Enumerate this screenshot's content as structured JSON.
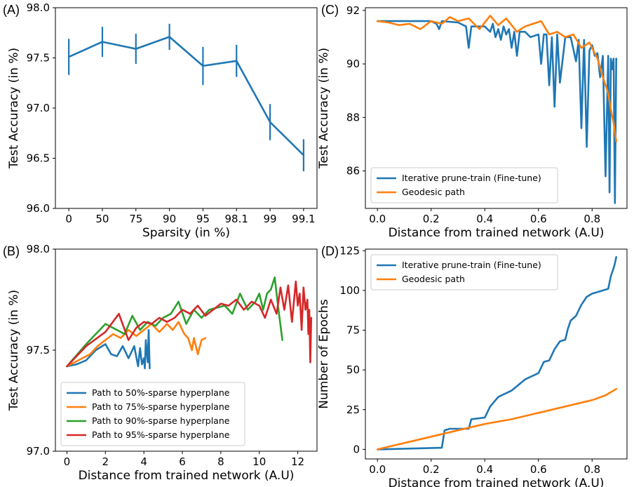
{
  "colors": {
    "blue": "#1f77b4",
    "orange": "#ff7f0e",
    "green": "#2ca02c",
    "red": "#d62728"
  },
  "chart_data": [
    {
      "panel": "(A)",
      "type": "line",
      "categories": [
        "0",
        "50",
        "75",
        "90",
        "95",
        "98.1",
        "99",
        "99.1"
      ],
      "series": [
        {
          "name": "test accuracy",
          "color": "blue",
          "values": [
            97.51,
            97.66,
            97.59,
            97.71,
            97.42,
            97.47,
            96.86,
            96.53
          ],
          "errors": [
            0.18,
            0.15,
            0.15,
            0.13,
            0.19,
            0.16,
            0.18,
            0.16
          ]
        }
      ],
      "xlabel": "Sparsity (in %)",
      "ylabel": "Test Accuracy (in %)",
      "ylim": [
        96.0,
        98.0
      ],
      "yticks": [
        "96.0",
        "96.5",
        "97.0",
        "97.5",
        "98.0"
      ]
    },
    {
      "panel": "(B)",
      "type": "line",
      "xlabel": "Distance from trained network (A.U)",
      "ylabel": "Test Accuracy (in %)",
      "xlim": [
        -0.6,
        13.0
      ],
      "ylim": [
        97.0,
        98.0
      ],
      "xticks": [
        "0",
        "2",
        "4",
        "6",
        "8",
        "10",
        "12"
      ],
      "yticks": [
        "97.0",
        "97.5",
        "98.0"
      ],
      "legend_loc": "lower-left",
      "series": [
        {
          "name": "Path to 50%-sparse hyperplane",
          "color": "blue",
          "x": [
            0,
            0.5,
            1,
            1.5,
            2,
            2.3,
            2.6,
            2.9,
            3.2,
            3.4,
            3.5,
            3.7,
            3.8,
            3.9,
            4.0,
            4.05,
            4.1,
            4.2,
            4.25,
            4.3
          ],
          "y": [
            97.42,
            97.43,
            97.45,
            97.5,
            97.53,
            97.48,
            97.47,
            97.52,
            97.46,
            97.5,
            97.52,
            97.42,
            97.51,
            97.43,
            97.46,
            97.41,
            97.55,
            97.44,
            97.6,
            97.41
          ]
        },
        {
          "name": "Path to 75%-sparse hyperplane",
          "color": "orange",
          "x": [
            0,
            0.6,
            1.2,
            1.6,
            2.0,
            2.4,
            2.8,
            3.2,
            3.6,
            4.0,
            4.4,
            4.8,
            5.2,
            5.5,
            5.8,
            6.1,
            6.3,
            6.5,
            6.6,
            6.8,
            7.0,
            7.2
          ],
          "y": [
            97.42,
            97.45,
            97.48,
            97.52,
            97.55,
            97.58,
            97.56,
            97.6,
            97.57,
            97.6,
            97.63,
            97.59,
            97.63,
            97.6,
            97.64,
            97.58,
            97.56,
            97.5,
            97.56,
            97.48,
            97.55,
            97.56
          ]
        },
        {
          "name": "Path to 90%-sparse hyperplane",
          "color": "green",
          "x": [
            0,
            1,
            2,
            2.6,
            3.0,
            3.4,
            3.8,
            4.2,
            4.6,
            5.0,
            5.4,
            5.8,
            6.2,
            6.6,
            7.0,
            7.4,
            7.8,
            8.2,
            8.6,
            9.0,
            9.4,
            9.8,
            10.0,
            10.2,
            10.4,
            10.6,
            10.8,
            11.0,
            11.2
          ],
          "y": [
            97.42,
            97.53,
            97.63,
            97.6,
            97.58,
            97.67,
            97.6,
            97.64,
            97.62,
            97.66,
            97.68,
            97.74,
            97.63,
            97.7,
            97.66,
            97.7,
            97.71,
            97.72,
            97.68,
            97.78,
            97.7,
            97.74,
            97.78,
            97.7,
            97.78,
            97.8,
            97.86,
            97.7,
            97.55
          ]
        },
        {
          "name": "Path to 95%-sparse hyperplane",
          "color": "red",
          "x": [
            0,
            1,
            2,
            2.7,
            3.2,
            3.6,
            4.0,
            4.4,
            4.8,
            5.2,
            5.6,
            6.0,
            6.4,
            6.8,
            7.2,
            7.6,
            8.0,
            8.4,
            8.8,
            9.2,
            9.6,
            10.0,
            10.3,
            10.6,
            10.9,
            11.1,
            11.3,
            11.5,
            11.7,
            11.9,
            12.0,
            12.1,
            12.2,
            12.3,
            12.4,
            12.5,
            12.55,
            12.6,
            12.65,
            12.7
          ],
          "y": [
            97.42,
            97.52,
            97.59,
            97.68,
            97.55,
            97.61,
            97.64,
            97.63,
            97.66,
            97.64,
            97.66,
            97.7,
            97.68,
            97.72,
            97.67,
            97.7,
            97.73,
            97.72,
            97.75,
            97.7,
            97.74,
            97.72,
            97.66,
            97.75,
            97.68,
            97.81,
            97.7,
            97.82,
            97.64,
            97.84,
            97.72,
            97.78,
            97.6,
            97.81,
            97.7,
            97.75,
            97.58,
            97.7,
            97.44,
            97.66
          ]
        }
      ]
    },
    {
      "panel": "(C)",
      "type": "line",
      "xlabel": "Distance from trained network (A.U)",
      "ylabel": "Test Accuracy (in %)",
      "xlim": [
        -0.045,
        0.93
      ],
      "ylim": [
        84.6,
        92.1
      ],
      "xticks": [
        "0.0",
        "0.2",
        "0.4",
        "0.6",
        "0.8"
      ],
      "yticks": [
        "86",
        "88",
        "90",
        "92"
      ],
      "legend_loc": "lower-left",
      "series": [
        {
          "name": "Iterative prune-train (Fine-tune)",
          "color": "blue",
          "x": [
            0,
            0.2,
            0.22,
            0.23,
            0.24,
            0.3,
            0.33,
            0.34,
            0.35,
            0.4,
            0.42,
            0.43,
            0.44,
            0.45,
            0.46,
            0.47,
            0.48,
            0.49,
            0.5,
            0.51,
            0.52,
            0.53,
            0.55,
            0.57,
            0.6,
            0.61,
            0.62,
            0.63,
            0.64,
            0.65,
            0.66,
            0.67,
            0.68,
            0.7,
            0.72,
            0.74,
            0.75,
            0.76,
            0.77,
            0.78,
            0.79,
            0.8,
            0.81,
            0.82,
            0.83,
            0.84,
            0.85,
            0.86,
            0.865,
            0.87,
            0.875,
            0.88,
            0.885,
            0.89
          ],
          "y": [
            91.6,
            91.6,
            91.5,
            91.3,
            91.6,
            91.55,
            91.4,
            90.6,
            91.4,
            91.4,
            91.2,
            91.5,
            91.0,
            91.3,
            90.9,
            91.4,
            91.1,
            91.3,
            90.6,
            91.2,
            90.3,
            91.2,
            91.2,
            91.0,
            91.1,
            90.0,
            91.1,
            91.1,
            89.2,
            91.0,
            88.4,
            91.1,
            89.3,
            91.0,
            91.0,
            90.1,
            90.9,
            87.6,
            90.9,
            86.9,
            90.5,
            90.7,
            90.3,
            90.4,
            89.5,
            90.3,
            85.8,
            90.3,
            85.2,
            90.2,
            89.8,
            90.2,
            84.8,
            90.2
          ]
        },
        {
          "name": "Geodesic path",
          "color": "orange",
          "x": [
            0,
            0.04,
            0.08,
            0.12,
            0.16,
            0.2,
            0.24,
            0.27,
            0.3,
            0.34,
            0.38,
            0.42,
            0.45,
            0.48,
            0.52,
            0.55,
            0.58,
            0.61,
            0.64,
            0.67,
            0.7,
            0.73,
            0.76,
            0.79,
            0.82,
            0.84,
            0.86,
            0.87,
            0.88,
            0.89
          ],
          "y": [
            91.6,
            91.55,
            91.45,
            91.5,
            91.3,
            91.6,
            91.5,
            91.75,
            91.6,
            91.7,
            91.3,
            91.8,
            91.45,
            91.7,
            91.2,
            91.4,
            91.5,
            91.6,
            91.1,
            91.2,
            91.0,
            91.1,
            90.6,
            90.8,
            90.2,
            89.5,
            88.9,
            88.3,
            87.8,
            87.1
          ]
        }
      ]
    },
    {
      "panel": "(D)",
      "type": "line",
      "xlabel": "Distance from trained network (A.U)",
      "ylabel": "Number of Epochs",
      "xlim": [
        -0.045,
        0.93
      ],
      "ylim": [
        -6,
        126
      ],
      "xticks": [
        "0.0",
        "0.2",
        "0.4",
        "0.6",
        "0.8"
      ],
      "yticks": [
        "0",
        "25",
        "50",
        "75",
        "100",
        "125"
      ],
      "legend_loc": "top-left",
      "series": [
        {
          "name": "Iterative prune-train (Fine-tune)",
          "color": "blue",
          "x": [
            0,
            0.24,
            0.25,
            0.27,
            0.34,
            0.35,
            0.4,
            0.42,
            0.45,
            0.5,
            0.55,
            0.6,
            0.62,
            0.64,
            0.66,
            0.68,
            0.7,
            0.71,
            0.72,
            0.74,
            0.76,
            0.78,
            0.8,
            0.82,
            0.84,
            0.86,
            0.87,
            0.88,
            0.885,
            0.89
          ],
          "y": [
            0,
            1,
            12,
            13,
            13,
            19,
            20,
            27,
            33,
            37,
            44,
            48,
            55,
            56,
            63,
            68,
            69,
            76,
            81,
            84,
            91,
            96,
            98,
            99,
            100,
            101,
            109,
            114,
            117,
            121
          ]
        },
        {
          "name": "Geodesic path",
          "color": "orange",
          "x": [
            0,
            0.1,
            0.2,
            0.3,
            0.4,
            0.5,
            0.6,
            0.7,
            0.75,
            0.8,
            0.85,
            0.88,
            0.89
          ],
          "y": [
            0,
            4,
            8,
            12,
            16,
            19,
            23,
            27,
            29,
            31,
            34,
            37,
            38
          ]
        }
      ]
    }
  ]
}
